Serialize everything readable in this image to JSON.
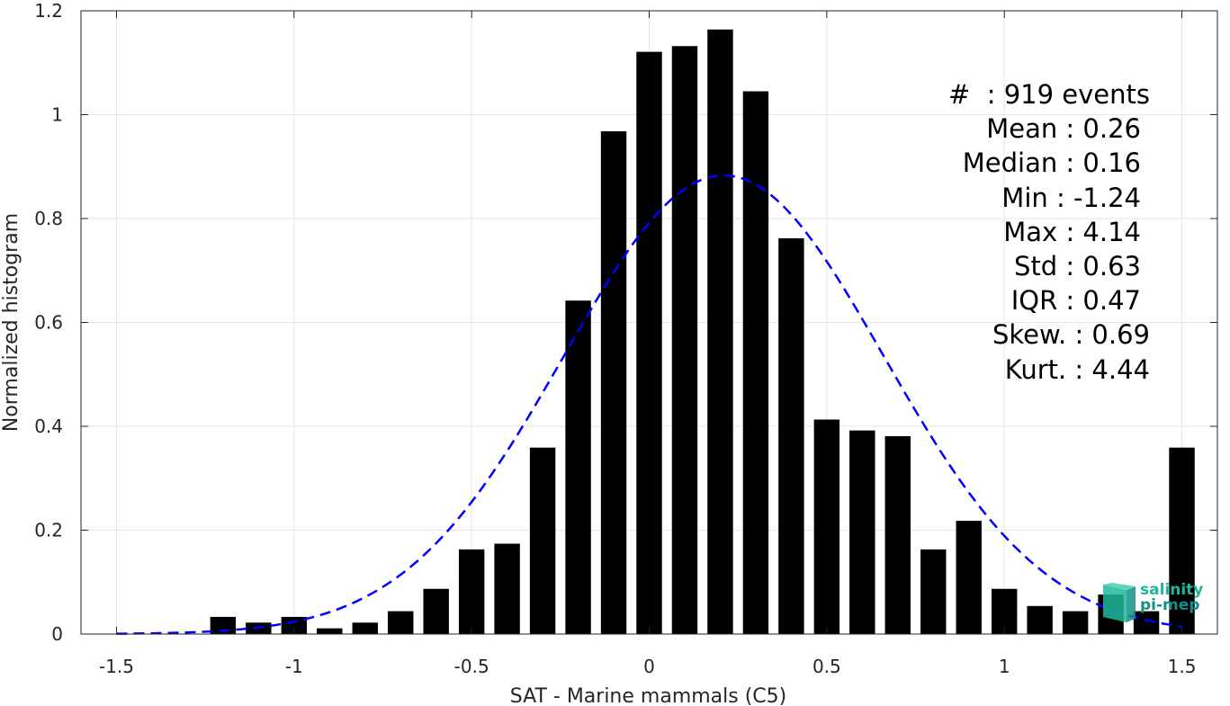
{
  "chart_data": {
    "type": "bar",
    "xlabel": "SAT - Marine mammals (C5)",
    "ylabel": "Normalized histogram",
    "xlim": [
      -1.6,
      1.6
    ],
    "ylim": [
      0,
      1.2
    ],
    "xticks": [
      -1.5,
      -1,
      -0.5,
      0,
      0.5,
      1,
      1.5
    ],
    "xtick_labels": [
      "-1.5",
      "-1",
      "-0.5",
      "0",
      "0.5",
      "1",
      "1.5"
    ],
    "yticks": [
      0,
      0.2,
      0.4,
      0.6,
      0.8,
      1,
      1.2
    ],
    "ytick_labels": [
      "0",
      "0.2",
      "0.4",
      "0.6",
      "0.8",
      "1",
      "1.2"
    ],
    "grid": true,
    "bar_color": "#000000",
    "curve_color": "#0000ff",
    "bars": {
      "x": [
        -1.2,
        -1.1,
        -1.0,
        -0.9,
        -0.8,
        -0.7,
        -0.6,
        -0.5,
        -0.4,
        -0.3,
        -0.2,
        -0.1,
        0.0,
        0.1,
        0.2,
        0.3,
        0.4,
        0.5,
        0.6,
        0.7,
        0.8,
        0.9,
        1.0,
        1.1,
        1.2,
        1.3,
        1.4,
        1.5
      ],
      "values": [
        0.033,
        0.022,
        0.033,
        0.011,
        0.022,
        0.044,
        0.087,
        0.163,
        0.174,
        0.359,
        0.642,
        0.968,
        1.121,
        1.132,
        1.164,
        1.045,
        0.762,
        0.413,
        0.392,
        0.381,
        0.163,
        0.218,
        0.087,
        0.054,
        0.044,
        0.076,
        0.044,
        0.359
      ]
    },
    "series": [
      {
        "type": "line",
        "style": "dashed",
        "mean": 0.21,
        "std": 0.45,
        "amplitude": 0.883,
        "x_range": [
          -1.5,
          1.5
        ]
      }
    ]
  },
  "stats": [
    {
      "label": "#  : 919 events"
    },
    {
      "label": "Mean : 0.26"
    },
    {
      "label": "Median : 0.16"
    },
    {
      "label": "Min : -1.24"
    },
    {
      "label": "Max : 4.14"
    },
    {
      "label": "Std : 0.63"
    },
    {
      "label": "IQR : 0.47"
    },
    {
      "label": "Skew. : 0.69"
    },
    {
      "label": "Kurt. : 4.44"
    }
  ],
  "logo": {
    "line1": "salinity",
    "line2": "pi-mep"
  }
}
